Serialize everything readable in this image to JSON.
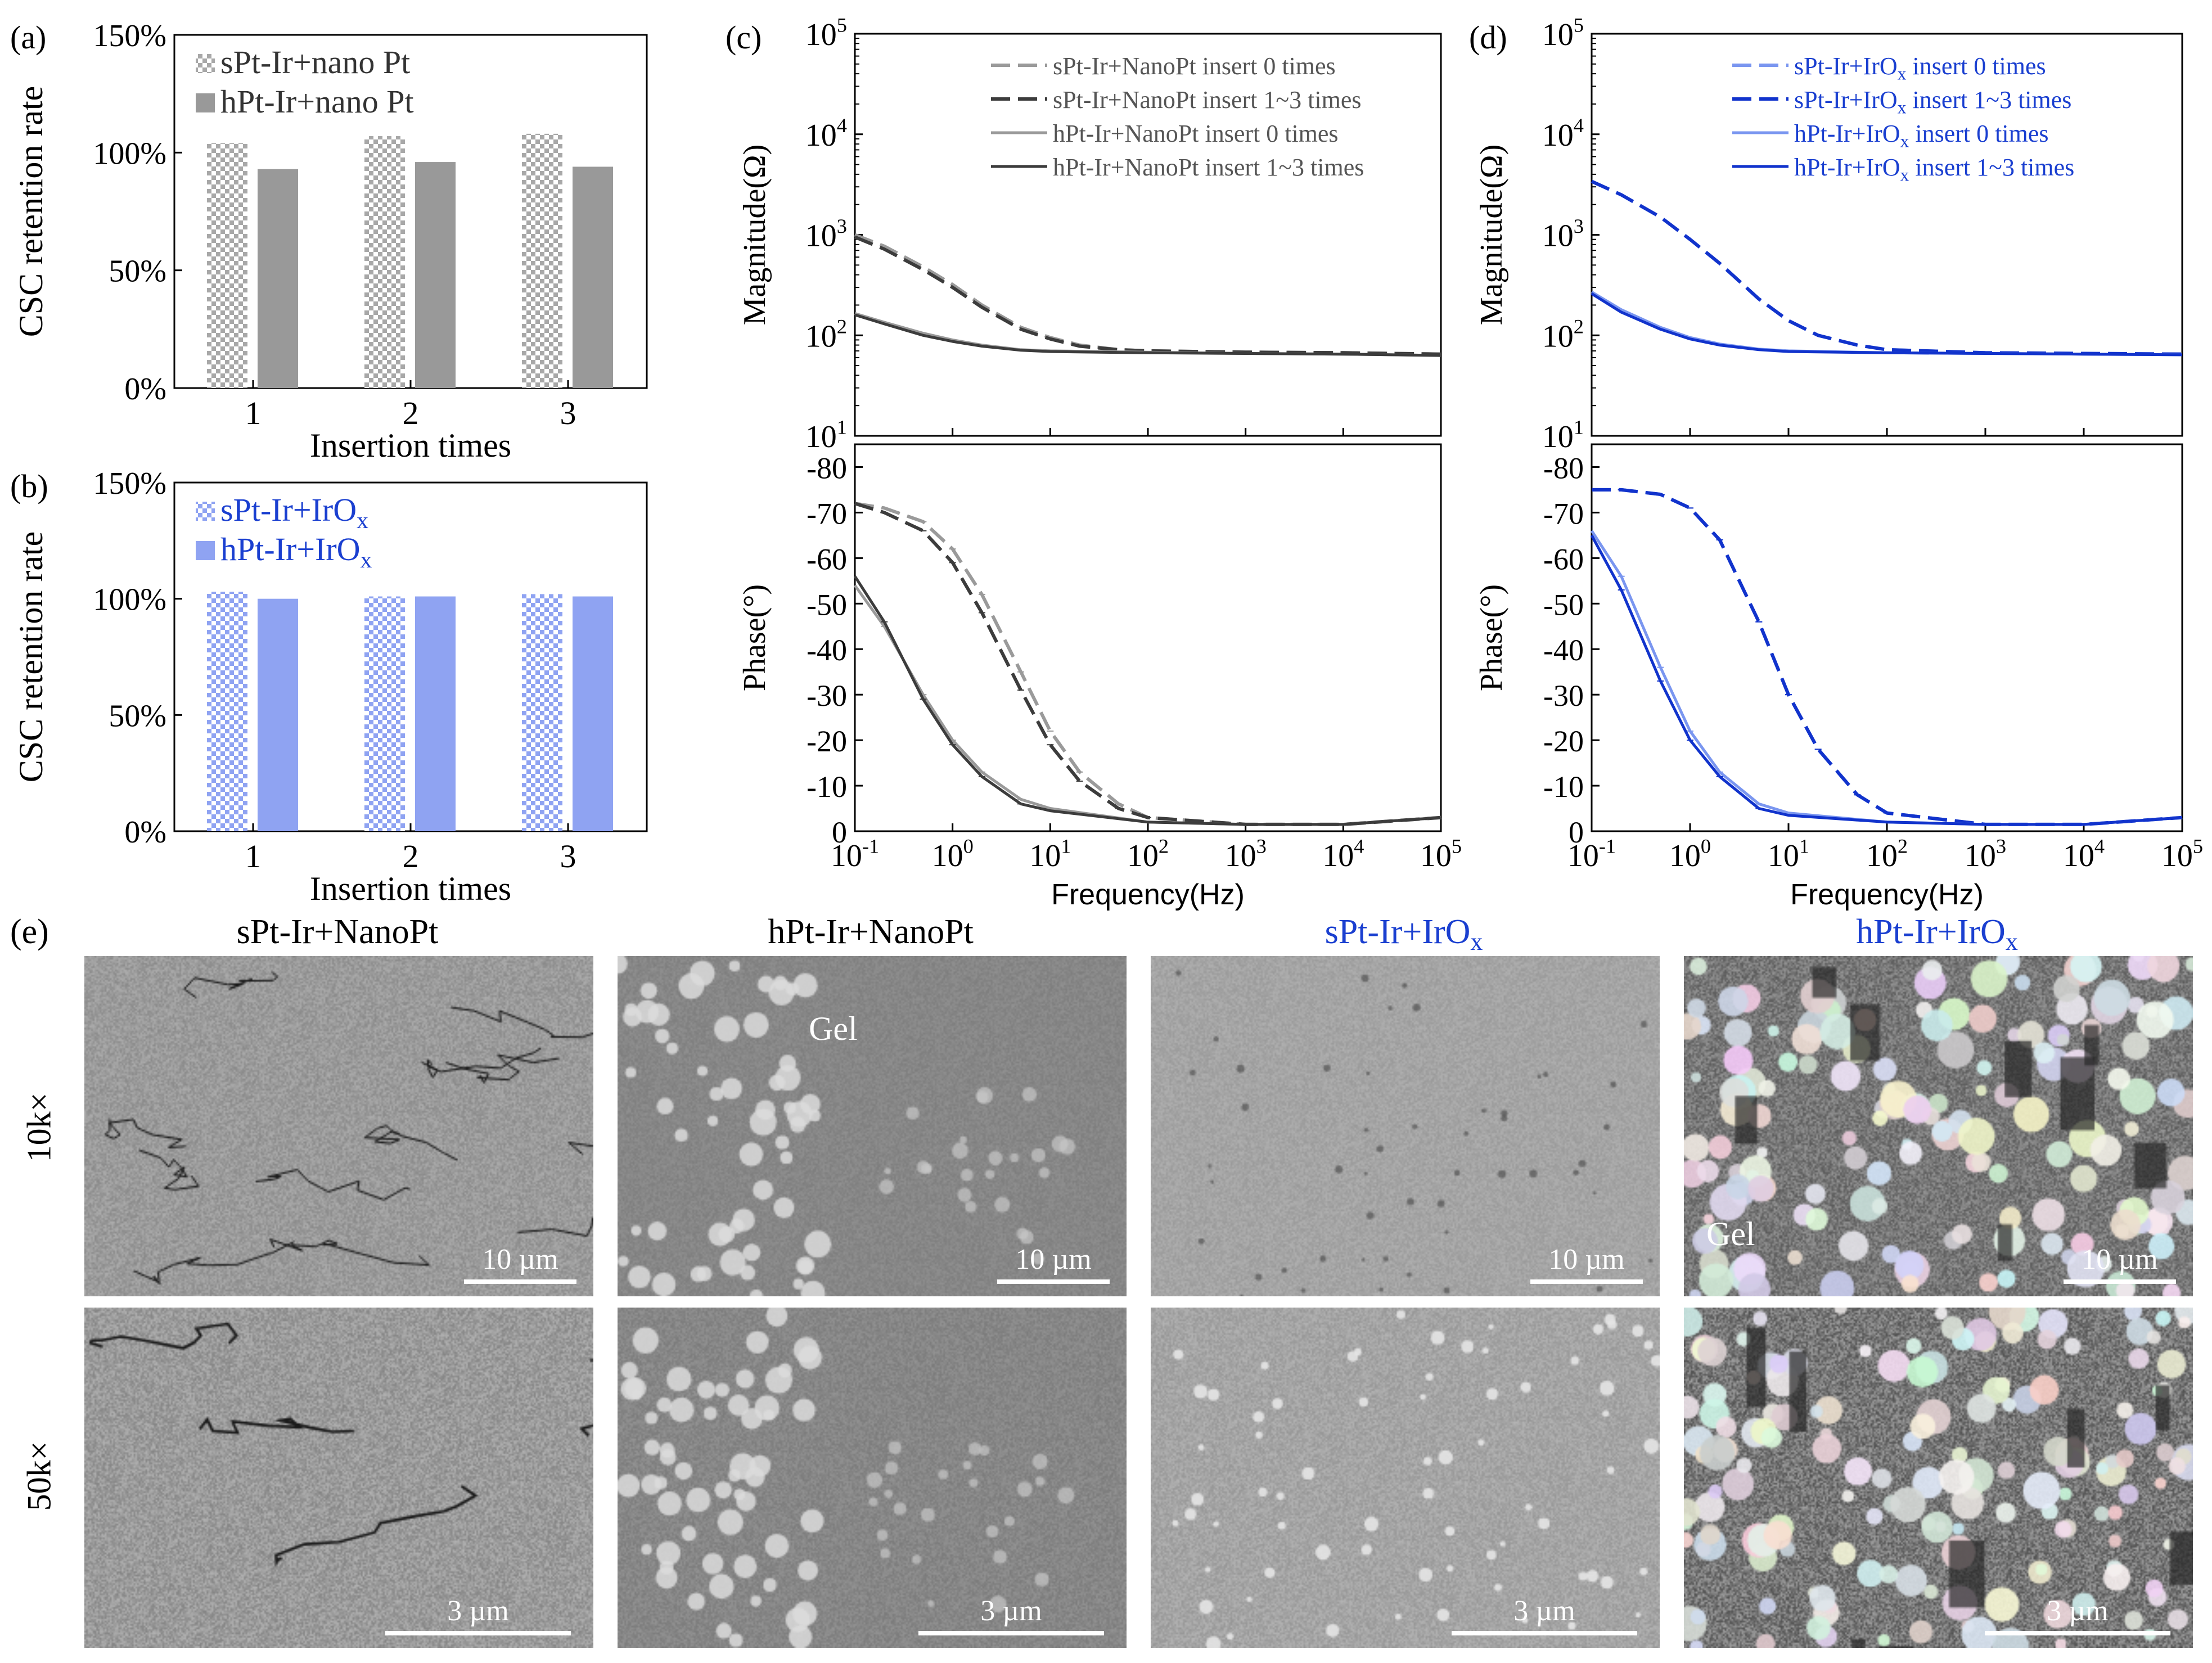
{
  "panel_labels": {
    "a": "(a)",
    "b": "(b)",
    "c": "(c)",
    "d": "(d)",
    "e": "(e)"
  },
  "colors": {
    "gray_dark": "#4a4a4a",
    "gray_light": "#9a9a9a",
    "gray_bar": "#999999",
    "blue_bar": "#8fa3f2",
    "blue_dark": "#1133cc",
    "blue_light": "#7a96f0",
    "blue_text": "#1a3fd0"
  },
  "chart_data": [
    {
      "id": "a",
      "type": "bar",
      "categories": [
        "1",
        "2",
        "3"
      ],
      "series": [
        {
          "name": "sPt-Ir+nano Pt",
          "values": [
            104,
            107,
            108
          ],
          "pattern": "checker-gray"
        },
        {
          "name": "hPt-Ir+nano Pt",
          "values": [
            93,
            96,
            94
          ],
          "pattern": "solid-gray"
        }
      ],
      "xlabel": "Insertion times",
      "ylabel": "CSC retention rate",
      "ylim": [
        0,
        150
      ],
      "yticks": [
        "0%",
        "50%",
        "100%",
        "150%"
      ],
      "legend": "top-left"
    },
    {
      "id": "b",
      "type": "bar",
      "categories": [
        "1",
        "2",
        "3"
      ],
      "series": [
        {
          "name": "sPt-Ir+IrOₓ",
          "values": [
            103,
            101,
            102
          ],
          "pattern": "checker-blue"
        },
        {
          "name": "hPt-Ir+IrOₓ",
          "values": [
            100,
            101,
            101
          ],
          "pattern": "solid-blue"
        }
      ],
      "xlabel": "Insertion times",
      "ylabel": "CSC retention rate",
      "ylim": [
        0,
        150
      ],
      "yticks": [
        "0%",
        "50%",
        "100%",
        "150%"
      ],
      "legend": "top-left"
    },
    {
      "id": "c",
      "type": "line",
      "xscale": "log",
      "xlabel": "Frequency(Hz)",
      "xlim": [
        0.1,
        100000
      ],
      "xticks": [
        "10⁻¹",
        "10⁰",
        "10¹",
        "10²",
        "10³",
        "10⁴",
        "10⁵"
      ],
      "legend": "top-right",
      "top": {
        "ylabel": "Magnitude(Ω)",
        "yscale": "log",
        "ylim": [
          10,
          100000
        ],
        "yticks": [
          "10¹",
          "10²",
          "10³",
          "10⁴",
          "10⁵"
        ]
      },
      "bottom": {
        "ylabel": "Phase(°)",
        "ylim": [
          0,
          -85
        ],
        "yticks": [
          "0",
          "-10",
          "-20",
          "-30",
          "-40",
          "-50",
          "-60",
          "-70",
          "-80"
        ]
      },
      "series": [
        {
          "name": "sPt-Ir+NanoPt insert 0 times",
          "style": "dashed",
          "color": "#9a9a9a",
          "x": [
            0.1,
            0.2,
            0.5,
            1,
            2,
            5,
            10,
            20,
            50,
            100,
            1000,
            10000,
            100000
          ],
          "magnitude": [
            1000,
            770,
            480,
            320,
            200,
            120,
            95,
            80,
            72,
            70,
            68,
            67,
            65
          ],
          "phase": [
            -72,
            -71,
            -68,
            -62,
            -52,
            -35,
            -22,
            -13,
            -6,
            -3,
            -1.5,
            -1.5,
            -3
          ]
        },
        {
          "name": "sPt-Ir+NanoPt insert 1~3 times",
          "style": "dashed",
          "color": "#3c3c3c",
          "x": [
            0.1,
            0.2,
            0.5,
            1,
            2,
            5,
            10,
            20,
            50,
            100,
            1000,
            10000,
            100000
          ],
          "magnitude": [
            950,
            720,
            450,
            300,
            190,
            115,
            92,
            78,
            72,
            70,
            68,
            67,
            65
          ],
          "phase": [
            -72,
            -70,
            -66,
            -59,
            -48,
            -31,
            -19,
            -11,
            -5,
            -3,
            -1.5,
            -1.5,
            -3
          ]
        },
        {
          "name": "hPt-Ir+NanoPt insert 0 times",
          "style": "solid",
          "color": "#9a9a9a",
          "x": [
            0.1,
            0.2,
            0.5,
            1,
            2,
            5,
            10,
            100,
            1000,
            10000,
            100000
          ],
          "magnitude": [
            165,
            135,
            105,
            90,
            80,
            72,
            70,
            68,
            66,
            65,
            63
          ],
          "phase": [
            -54,
            -45,
            -30,
            -20,
            -13,
            -7,
            -5,
            -2,
            -1.5,
            -1.5,
            -3
          ]
        },
        {
          "name": "hPt-Ir+NanoPt insert 1~3 times",
          "style": "solid",
          "color": "#3c3c3c",
          "x": [
            0.1,
            0.2,
            0.5,
            1,
            2,
            5,
            10,
            100,
            1000,
            10000,
            100000
          ],
          "magnitude": [
            160,
            130,
            100,
            87,
            78,
            71,
            69,
            67,
            66,
            65,
            63
          ],
          "phase": [
            -56,
            -46,
            -29,
            -19,
            -12,
            -6,
            -4.5,
            -2,
            -1.5,
            -1.5,
            -3
          ]
        }
      ]
    },
    {
      "id": "d",
      "type": "line",
      "xscale": "log",
      "xlabel": "Frequency(Hz)",
      "xlim": [
        0.1,
        100000
      ],
      "xticks": [
        "10⁻¹",
        "10⁰",
        "10¹",
        "10²",
        "10³",
        "10⁴",
        "10⁵"
      ],
      "legend": "top-right",
      "top": {
        "ylabel": "Magnitude(Ω)",
        "yscale": "log",
        "ylim": [
          10,
          100000
        ],
        "yticks": [
          "10¹",
          "10²",
          "10³",
          "10⁴",
          "10⁵"
        ]
      },
      "bottom": {
        "ylabel": "Phase(°)",
        "ylim": [
          0,
          -85
        ],
        "yticks": [
          "0",
          "-10",
          "-20",
          "-30",
          "-40",
          "-50",
          "-60",
          "-70",
          "-80"
        ]
      },
      "series": [
        {
          "name": "sPt-Ir+IrOₓ insert 0 times",
          "style": "dashed",
          "color": "#7a96f0",
          "x": [
            0.1,
            0.2,
            0.5,
            1,
            2,
            5,
            10,
            20,
            50,
            100,
            1000,
            10000,
            100000
          ],
          "magnitude": [
            3400,
            2500,
            1500,
            900,
            520,
            230,
            140,
            100,
            80,
            72,
            67,
            66,
            65
          ],
          "phase": [
            -75,
            -75,
            -74,
            -71,
            -64,
            -46,
            -30,
            -18,
            -8,
            -4,
            -1.5,
            -1.5,
            -3
          ]
        },
        {
          "name": "sPt-Ir+IrOₓ insert 1~3 times",
          "style": "dashed",
          "color": "#1133cc",
          "x": [
            0.1,
            0.2,
            0.5,
            1,
            2,
            5,
            10,
            20,
            50,
            100,
            1000,
            10000,
            100000
          ],
          "magnitude": [
            3400,
            2500,
            1500,
            900,
            520,
            230,
            140,
            100,
            80,
            72,
            67,
            66,
            65
          ],
          "phase": [
            -75,
            -75,
            -74,
            -71,
            -64,
            -46,
            -30,
            -18,
            -8,
            -4,
            -1.5,
            -1.5,
            -3
          ]
        },
        {
          "name": "hPt-Ir+IrOₓ insert 0 times",
          "style": "solid",
          "color": "#7a96f0",
          "x": [
            0.1,
            0.2,
            0.5,
            1,
            2,
            5,
            10,
            100,
            1000,
            10000,
            100000
          ],
          "magnitude": [
            270,
            180,
            120,
            95,
            82,
            73,
            70,
            67,
            66,
            65,
            64
          ],
          "phase": [
            -66,
            -56,
            -36,
            -22,
            -13,
            -6,
            -4,
            -2,
            -1.5,
            -1.5,
            -3
          ]
        },
        {
          "name": "hPt-Ir+IrOₓ insert 1~3 times",
          "style": "solid",
          "color": "#1133cc",
          "x": [
            0.1,
            0.2,
            0.5,
            1,
            2,
            5,
            10,
            100,
            1000,
            10000,
            100000
          ],
          "magnitude": [
            260,
            170,
            115,
            92,
            80,
            72,
            69,
            67,
            66,
            65,
            64
          ],
          "phase": [
            -65,
            -53,
            -33,
            -20,
            -12,
            -5,
            -3.5,
            -2,
            -1.5,
            -1.5,
            -3
          ]
        }
      ]
    }
  ],
  "sem": {
    "columns": [
      {
        "title": "sPt-Ir+NanoPt",
        "title_color": "#333333",
        "scale_10k": "10 µm",
        "scale_50k": "3 µm"
      },
      {
        "title": "hPt-Ir+NanoPt",
        "title_color": "#333333",
        "scale_10k": "10 µm",
        "scale_50k": "3 µm",
        "gel_label": "Gel"
      },
      {
        "title": "sPt-Ir+IrOₓ",
        "title_color": "#1a3fd0",
        "scale_10k": "10 µm",
        "scale_50k": "3 µm"
      },
      {
        "title": "hPt-Ir+IrOₓ",
        "title_color": "#1a3fd0",
        "scale_10k": "10 µm",
        "scale_50k": "3 µm",
        "gel_label": "Gel"
      }
    ],
    "rows": [
      {
        "label": "10k×"
      },
      {
        "label": "50k×"
      }
    ]
  }
}
